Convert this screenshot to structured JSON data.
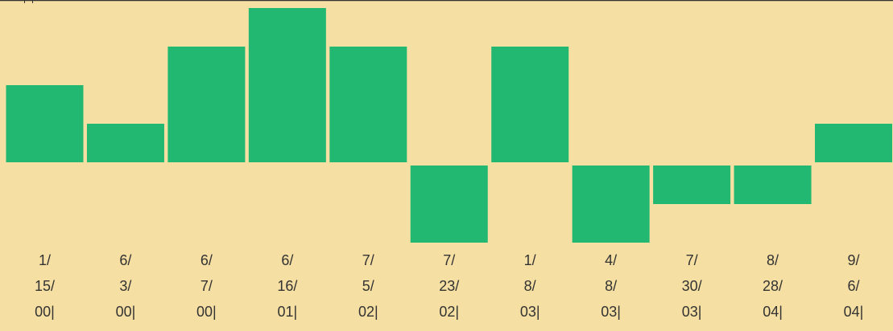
{
  "chart_data": {
    "type": "bar",
    "categories": [
      "1/\n15/\n00|",
      "6/\n3/\n00|",
      "6/\n7/\n00|",
      "6/\n16/\n01|",
      "7/\n5/\n02|",
      "7/\n23/\n02|",
      "1/\n8/\n03|",
      "4/\n8/\n03|",
      "7/\n30/\n03|",
      "8/\n28/\n04|",
      "9/\n6/\n04|"
    ],
    "values": [
      2,
      1,
      3,
      4,
      3,
      -2,
      3,
      -2,
      -1,
      -1,
      1
    ],
    "color": "#22b872"
  }
}
